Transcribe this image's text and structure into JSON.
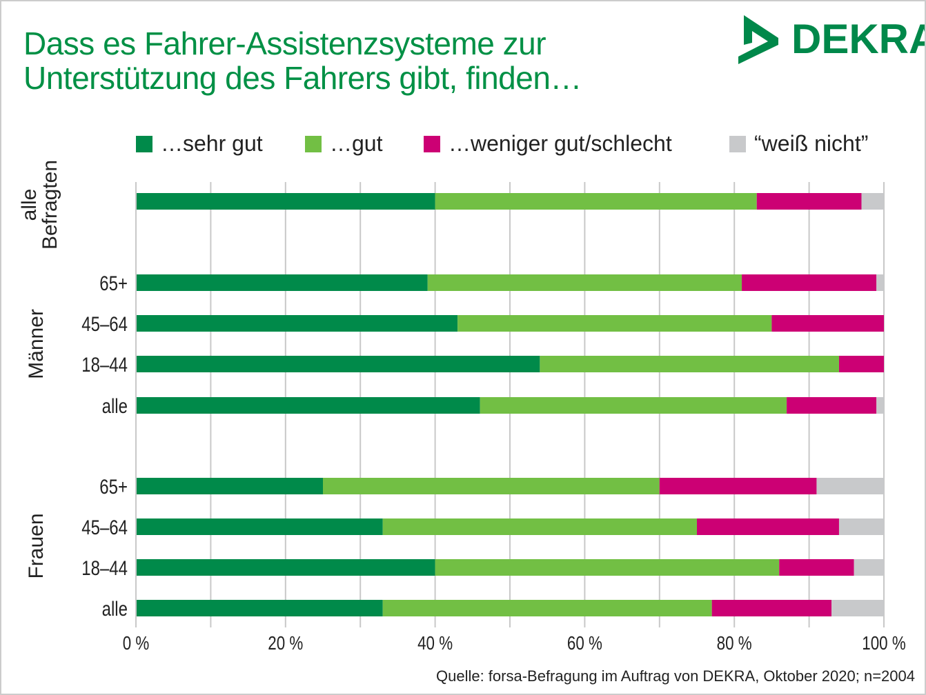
{
  "chart_data": {
    "type": "bar",
    "orientation": "horizontal-stacked",
    "title": "Dass es Fahrer-Assistenzsysteme zur Unterstützung des Fahrers gibt, finden…",
    "brand": "DEKRA",
    "source": "Quelle: forsa-Befragung im Auftrag von DEKRA, Oktober 2020; n=2004",
    "xlim": [
      0,
      100
    ],
    "xticks": [
      "0 %",
      "20 %",
      "40 %",
      "60 %",
      "80 %",
      "100 %"
    ],
    "grid": true,
    "legend_position": "top",
    "series": [
      {
        "name": "…sehr gut",
        "color": "#008a4a"
      },
      {
        "name": "…gut",
        "color": "#72bf44"
      },
      {
        "name": "…weniger gut/schlecht",
        "color": "#cc0074"
      },
      {
        "name": "“weiß nicht”",
        "color": "#c8c9cb"
      }
    ],
    "groups": [
      {
        "label": "alle Befragten",
        "label_lines": [
          "alle",
          "Befragten"
        ],
        "rows": [
          {
            "label": "",
            "values": [
              40,
              43,
              14,
              3
            ]
          }
        ]
      },
      {
        "label": "Männer",
        "rows": [
          {
            "label": "65+",
            "values": [
              39,
              42,
              18,
              1
            ]
          },
          {
            "label": "45–64",
            "values": [
              43,
              42,
              15,
              0
            ]
          },
          {
            "label": "18–44",
            "values": [
              54,
              40,
              6,
              0
            ]
          },
          {
            "label": "alle",
            "values": [
              46,
              41,
              12,
              1
            ]
          }
        ]
      },
      {
        "label": "Frauen",
        "rows": [
          {
            "label": "65+",
            "values": [
              25,
              45,
              21,
              9
            ]
          },
          {
            "label": "45–64",
            "values": [
              33,
              42,
              19,
              6
            ]
          },
          {
            "label": "18–44",
            "values": [
              40,
              46,
              10,
              4
            ]
          },
          {
            "label": "alle",
            "values": [
              33,
              44,
              16,
              7
            ]
          }
        ]
      }
    ]
  }
}
